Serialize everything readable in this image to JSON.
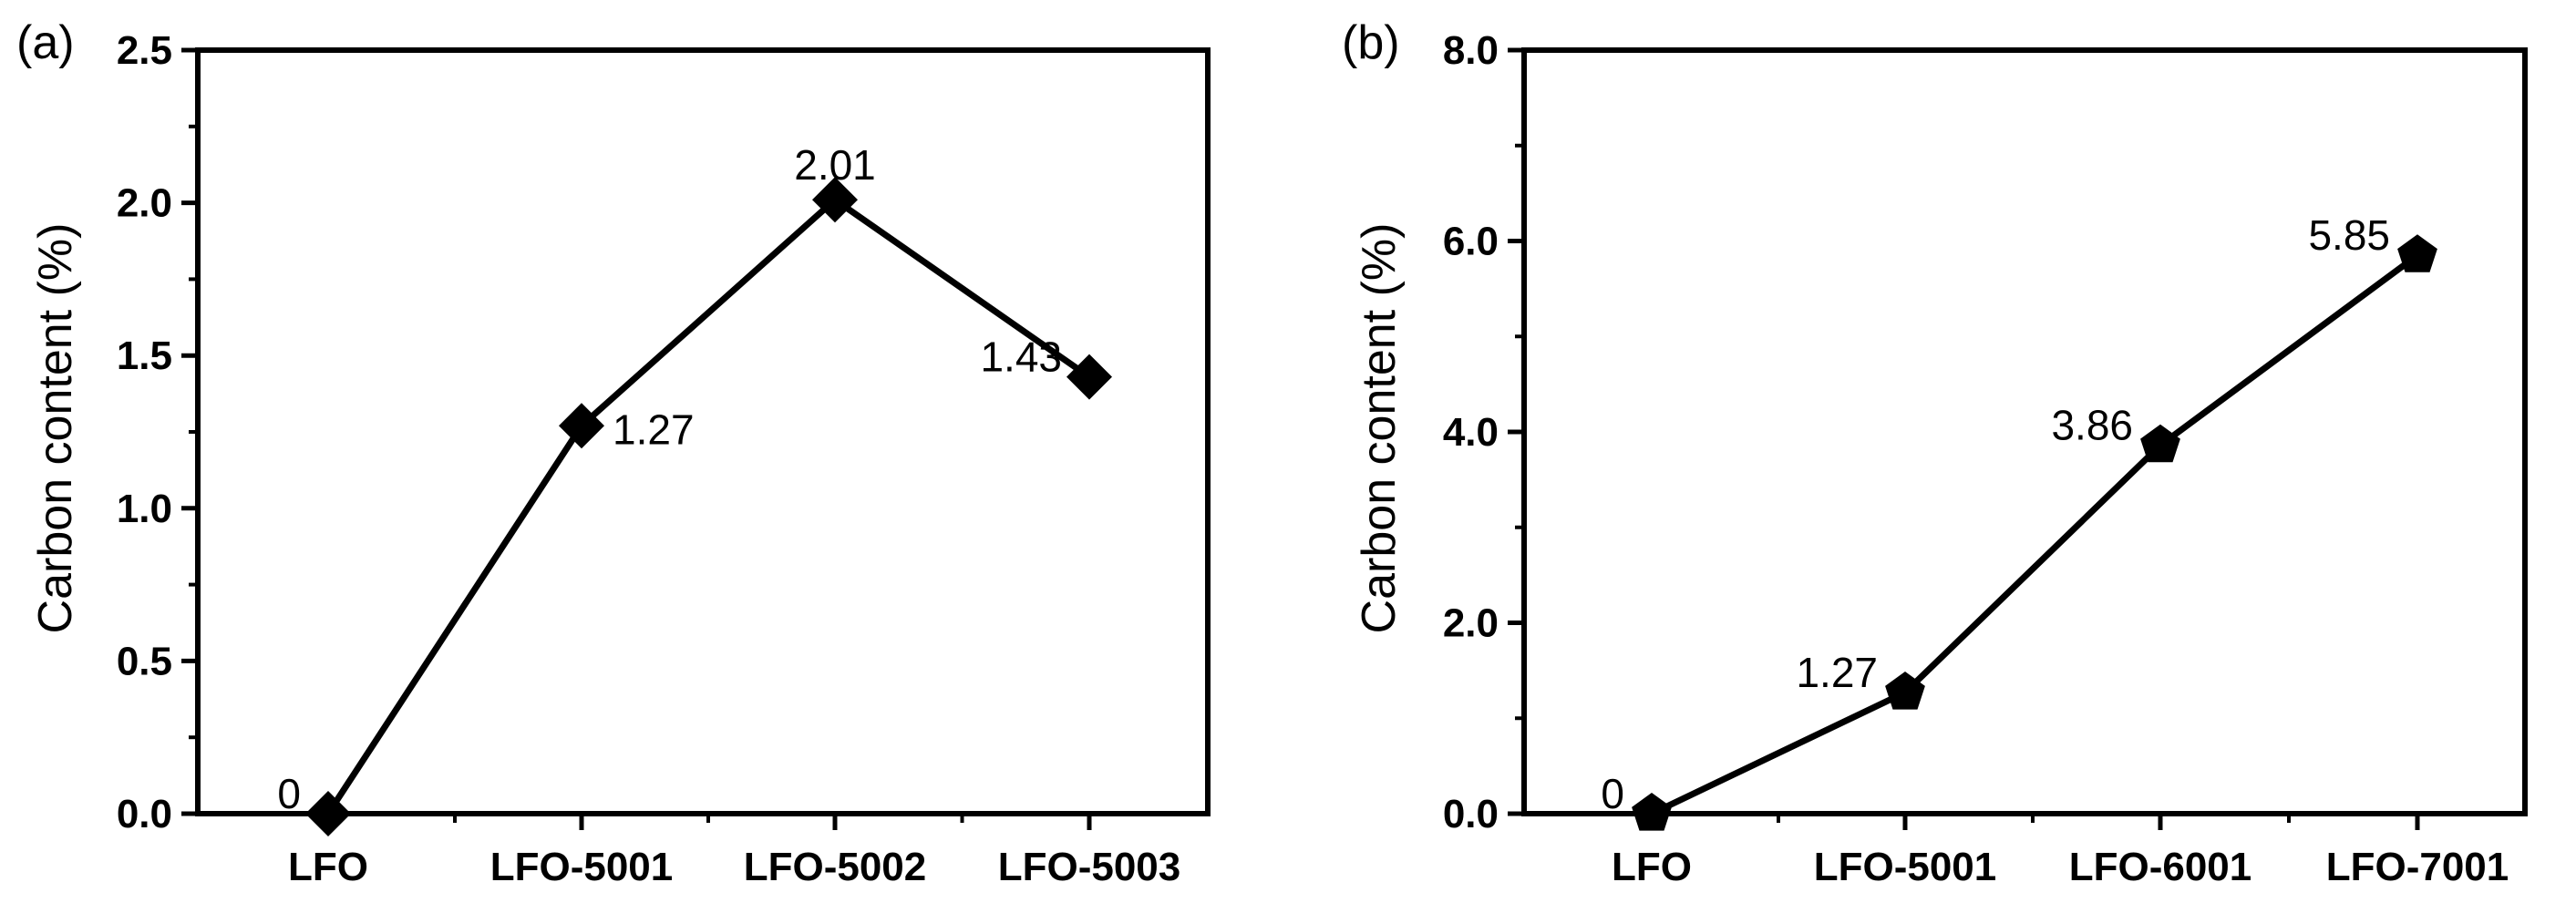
{
  "chart_data": [
    {
      "panel": "(a)",
      "type": "line",
      "categories": [
        "LFO",
        "LFO-5001",
        "LFO-5002",
        "LFO-5003"
      ],
      "values": [
        0,
        1.27,
        2.01,
        1.43
      ],
      "labels": [
        "0",
        "1.27",
        "2.01",
        "1.43"
      ],
      "ylabel": "Carbon content (%)",
      "xlabel": "",
      "ylim": [
        0,
        2.5
      ],
      "yticks": [
        0,
        0.5,
        1.0,
        1.5,
        2.0,
        2.5
      ],
      "ytick_labels": [
        "0.0",
        "0.5",
        "1.0",
        "1.5",
        "2.0",
        "2.5"
      ],
      "marker": "diamond",
      "label_positions": [
        "left",
        "right",
        "above",
        "left"
      ],
      "grid": false,
      "color": "#000000"
    },
    {
      "panel": "(b)",
      "type": "line",
      "categories": [
        "LFO",
        "LFO-5001",
        "LFO-6001",
        "LFO-7001"
      ],
      "values": [
        0,
        1.27,
        3.86,
        5.85
      ],
      "labels": [
        "0",
        "1.27",
        "3.86",
        "5.85"
      ],
      "ylabel": "Carbon content (%)",
      "xlabel": "",
      "ylim": [
        0,
        8.0
      ],
      "yticks": [
        0,
        2.0,
        4.0,
        6.0,
        8.0
      ],
      "ytick_labels": [
        "0.0",
        "2.0",
        "4.0",
        "6.0",
        "8.0"
      ],
      "marker": "pentagon",
      "label_positions": [
        "left",
        "left",
        "left",
        "left"
      ],
      "grid": false,
      "color": "#000000"
    }
  ]
}
